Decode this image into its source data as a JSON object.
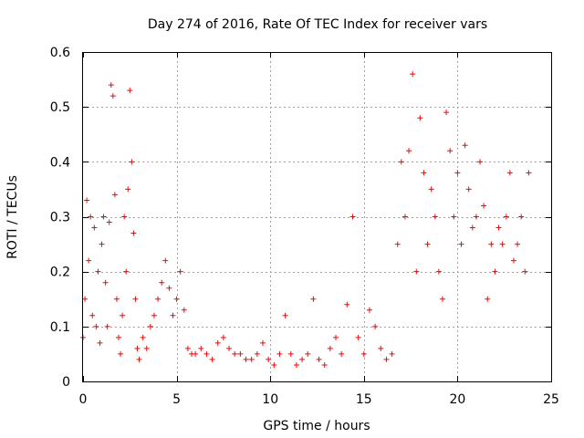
{
  "chart_data": {
    "type": "scatter",
    "title": "Day 274 of 2016, Rate Of TEC Index for receiver vars",
    "xlabel": "GPS time / hours",
    "ylabel": "ROTI / TECUs",
    "xlim": [
      0,
      25
    ],
    "ylim": [
      0,
      0.6
    ],
    "x_ticks": [
      0,
      5,
      10,
      15,
      20,
      25
    ],
    "x_tick_labels": [
      "0",
      "5",
      "10",
      "15",
      "20",
      "25"
    ],
    "y_ticks": [
      0,
      0.1,
      0.2,
      0.3,
      0.4,
      0.5,
      0.6
    ],
    "y_tick_labels": [
      "0",
      "0.1",
      "0.2",
      "0.3",
      "0.4",
      "0.5",
      "0.6"
    ],
    "grid": true,
    "marker": "+",
    "color": "#ff0000",
    "series": [
      {
        "name": "vars",
        "x": [
          0.0,
          0.1,
          0.2,
          0.3,
          0.4,
          0.5,
          0.6,
          0.7,
          0.8,
          0.9,
          1.0,
          1.1,
          1.2,
          1.3,
          1.4,
          1.5,
          1.6,
          1.7,
          1.8,
          1.9,
          2.0,
          2.1,
          2.2,
          2.3,
          2.4,
          2.5,
          2.6,
          2.7,
          2.8,
          2.9,
          3.0,
          3.2,
          3.4,
          3.6,
          3.8,
          4.0,
          4.2,
          4.4,
          4.6,
          4.8,
          5.0,
          5.2,
          5.4,
          5.6,
          5.8,
          6.0,
          6.3,
          6.6,
          6.9,
          7.2,
          7.5,
          7.8,
          8.1,
          8.4,
          8.7,
          9.0,
          9.3,
          9.6,
          9.9,
          10.2,
          10.5,
          10.8,
          11.1,
          11.4,
          11.7,
          12.0,
          12.3,
          12.6,
          12.9,
          13.2,
          13.5,
          13.8,
          14.1,
          14.4,
          14.7,
          15.0,
          15.3,
          15.6,
          15.9,
          16.2,
          16.5,
          16.8,
          17.0,
          17.2,
          17.4,
          17.6,
          17.8,
          18.0,
          18.2,
          18.4,
          18.6,
          18.8,
          19.0,
          19.2,
          19.4,
          19.6,
          19.8,
          20.0,
          20.2,
          20.4,
          20.6,
          20.8,
          21.0,
          21.2,
          21.4,
          21.6,
          21.8,
          22.0,
          22.2,
          22.4,
          22.6,
          22.8,
          23.0,
          23.2,
          23.4,
          23.6,
          23.8
        ],
        "y": [
          0.08,
          0.15,
          0.33,
          0.22,
          0.3,
          0.12,
          0.28,
          0.1,
          0.2,
          0.07,
          0.25,
          0.3,
          0.18,
          0.1,
          0.29,
          0.54,
          0.52,
          0.34,
          0.15,
          0.08,
          0.05,
          0.12,
          0.3,
          0.2,
          0.35,
          0.53,
          0.4,
          0.27,
          0.15,
          0.06,
          0.04,
          0.08,
          0.06,
          0.1,
          0.12,
          0.15,
          0.18,
          0.22,
          0.17,
          0.12,
          0.15,
          0.2,
          0.13,
          0.06,
          0.05,
          0.05,
          0.06,
          0.05,
          0.04,
          0.07,
          0.08,
          0.06,
          0.05,
          0.05,
          0.04,
          0.04,
          0.05,
          0.07,
          0.04,
          0.03,
          0.05,
          0.12,
          0.05,
          0.03,
          0.04,
          0.05,
          0.15,
          0.04,
          0.03,
          0.06,
          0.08,
          0.05,
          0.14,
          0.3,
          0.08,
          0.05,
          0.13,
          0.1,
          0.06,
          0.04,
          0.05,
          0.25,
          0.4,
          0.3,
          0.42,
          0.56,
          0.2,
          0.48,
          0.38,
          0.25,
          0.35,
          0.3,
          0.2,
          0.15,
          0.49,
          0.42,
          0.3,
          0.38,
          0.25,
          0.43,
          0.35,
          0.28,
          0.3,
          0.4,
          0.32,
          0.15,
          0.25,
          0.2,
          0.28,
          0.25,
          0.3,
          0.38,
          0.22,
          0.25,
          0.3,
          0.2,
          0.38
        ]
      }
    ],
    "annotations": []
  }
}
